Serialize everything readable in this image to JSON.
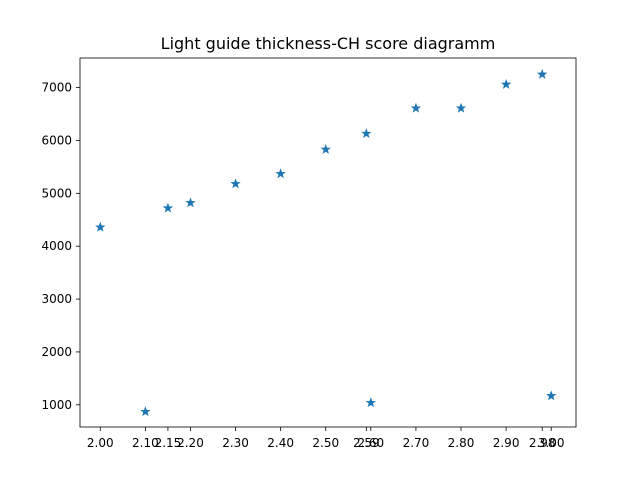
{
  "chart_data": {
    "type": "scatter",
    "title": "Light guide thickness-CH score diagramm",
    "xlabel": "",
    "ylabel": "",
    "marker": "star",
    "color": "#1f77b4",
    "grid": false,
    "xlim": [
      1.955,
      3.055
    ],
    "ylim": [
      580,
      7560
    ],
    "x_ticks": [
      "2.00",
      "2.10",
      "2.15",
      "2.20",
      "2.30",
      "2.40",
      "2.50",
      "2.59",
      "2.60",
      "2.70",
      "2.80",
      "2.90",
      "2.98",
      "3.00"
    ],
    "y_ticks": [
      "1000",
      "2000",
      "3000",
      "4000",
      "5000",
      "6000",
      "7000"
    ],
    "series": [
      {
        "points": [
          {
            "x": 2.0,
            "y": 4360
          },
          {
            "x": 2.1,
            "y": 870
          },
          {
            "x": 2.15,
            "y": 4720
          },
          {
            "x": 2.2,
            "y": 4820
          },
          {
            "x": 2.3,
            "y": 5180
          },
          {
            "x": 2.4,
            "y": 5370
          },
          {
            "x": 2.5,
            "y": 5830
          },
          {
            "x": 2.59,
            "y": 6130
          },
          {
            "x": 2.6,
            "y": 1040
          },
          {
            "x": 2.7,
            "y": 6610
          },
          {
            "x": 2.8,
            "y": 6610
          },
          {
            "x": 2.9,
            "y": 7060
          },
          {
            "x": 2.98,
            "y": 7250
          },
          {
            "x": 3.0,
            "y": 1170
          }
        ]
      }
    ]
  }
}
